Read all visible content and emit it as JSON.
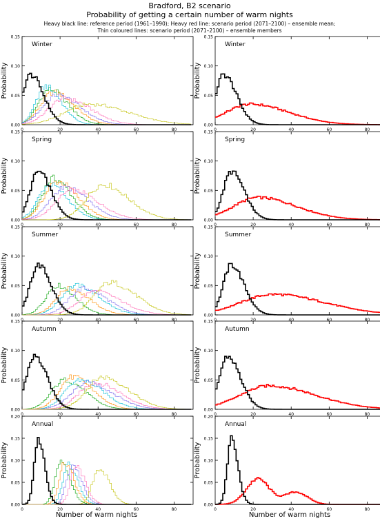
{
  "header": {
    "title": "Bradford, B2 scenario",
    "subtitle": "Probability of getting a certain number of warm nights",
    "legend_line1": "Heavy black line: reference period (1961–1990); Heavy red line: scenario period (2071–2100) – ensemble mean;",
    "legend_line2": "Thin coloured lines: scenario period (2071–2100) – ensemble members"
  },
  "axes": {
    "xlabel": "Number of warm nights",
    "ylabel": "Probability"
  },
  "colors": {
    "reference": "#000000",
    "ensemble_mean": "#ff0000",
    "members": [
      "#00a000",
      "#ff8c00",
      "#00bcd4",
      "#7b68ee",
      "#ff69b4",
      "#c0c000"
    ]
  },
  "chart_data": [
    {
      "type": "line",
      "panel": "Winter",
      "column": "left",
      "label": "Winter",
      "xlim": [
        0,
        90
      ],
      "ylim": [
        0,
        0.15
      ],
      "xticks": [
        0,
        20,
        40,
        60,
        80
      ],
      "yticks": [
        "0.00",
        "0.05",
        "0.10",
        "0.15"
      ],
      "series": [
        {
          "role": "reference",
          "peak": 4,
          "peak_value": 0.085,
          "spread": 5
        },
        {
          "role": "member",
          "peak": 14,
          "peak_value": 0.06,
          "spread": 7
        },
        {
          "role": "member",
          "peak": 16,
          "peak_value": 0.055,
          "spread": 8
        },
        {
          "role": "member",
          "peak": 12,
          "peak_value": 0.065,
          "spread": 6
        },
        {
          "role": "member",
          "peak": 18,
          "peak_value": 0.05,
          "spread": 9
        },
        {
          "role": "member",
          "peak": 22,
          "peak_value": 0.045,
          "spread": 10
        },
        {
          "role": "member",
          "peak": 35,
          "peak_value": 0.035,
          "spread": 15
        }
      ]
    },
    {
      "type": "line",
      "panel": "Winter",
      "column": "right",
      "label": "Winter",
      "xlim": [
        0,
        90
      ],
      "ylim": [
        0,
        0.15
      ],
      "xticks": [
        0,
        20,
        40,
        60,
        80
      ],
      "yticks": [
        "0.00",
        "0.05",
        "0.10",
        "0.15"
      ],
      "series": [
        {
          "role": "reference",
          "peak": 4,
          "peak_value": 0.085,
          "spread": 5
        },
        {
          "role": "ensemble_mean",
          "peak": 18,
          "peak_value": 0.035,
          "spread": 15
        }
      ]
    },
    {
      "type": "line",
      "panel": "Spring",
      "column": "left",
      "label": "Spring",
      "xlim": [
        0,
        90
      ],
      "ylim": [
        0,
        0.15
      ],
      "xticks": [
        0,
        20,
        40,
        60,
        80
      ],
      "yticks": [
        "0.00",
        "0.05",
        "0.10",
        "0.15"
      ],
      "series": [
        {
          "role": "reference",
          "peak": 8,
          "peak_value": 0.082,
          "spread": 5
        },
        {
          "role": "member",
          "peak": 16,
          "peak_value": 0.07,
          "spread": 7
        },
        {
          "role": "member",
          "peak": 18,
          "peak_value": 0.065,
          "spread": 8
        },
        {
          "role": "member",
          "peak": 14,
          "peak_value": 0.06,
          "spread": 7
        },
        {
          "role": "member",
          "peak": 22,
          "peak_value": 0.055,
          "spread": 9
        },
        {
          "role": "member",
          "peak": 26,
          "peak_value": 0.05,
          "spread": 10
        },
        {
          "role": "member",
          "peak": 42,
          "peak_value": 0.06,
          "spread": 10
        }
      ]
    },
    {
      "type": "line",
      "panel": "Spring",
      "column": "right",
      "label": "Spring",
      "xlim": [
        0,
        90
      ],
      "ylim": [
        0,
        0.15
      ],
      "xticks": [
        0,
        20,
        40,
        60,
        80
      ],
      "yticks": [
        "0.00",
        "0.05",
        "0.10",
        "0.15"
      ],
      "series": [
        {
          "role": "reference",
          "peak": 8,
          "peak_value": 0.082,
          "spread": 5
        },
        {
          "role": "ensemble_mean",
          "peak": 22,
          "peak_value": 0.038,
          "spread": 15
        }
      ]
    },
    {
      "type": "line",
      "panel": "Summer",
      "column": "left",
      "label": "Summer",
      "xlim": [
        0,
        90
      ],
      "ylim": [
        0,
        0.15
      ],
      "xticks": [
        0,
        20,
        40,
        60,
        80
      ],
      "yticks": [
        "0.00",
        "0.05",
        "0.10",
        "0.15"
      ],
      "series": [
        {
          "role": "reference",
          "peak": 8,
          "peak_value": 0.085,
          "spread": 5
        },
        {
          "role": "member",
          "peak": 18,
          "peak_value": 0.05,
          "spread": 7
        },
        {
          "role": "member",
          "peak": 24,
          "peak_value": 0.045,
          "spread": 8
        },
        {
          "role": "member",
          "peak": 28,
          "peak_value": 0.05,
          "spread": 9
        },
        {
          "role": "member",
          "peak": 32,
          "peak_value": 0.045,
          "spread": 9
        },
        {
          "role": "member",
          "peak": 38,
          "peak_value": 0.04,
          "spread": 10
        },
        {
          "role": "member",
          "peak": 46,
          "peak_value": 0.055,
          "spread": 10
        }
      ]
    },
    {
      "type": "line",
      "panel": "Summer",
      "column": "right",
      "label": "Summer",
      "xlim": [
        0,
        90
      ],
      "ylim": [
        0,
        0.15
      ],
      "xticks": [
        0,
        20,
        40,
        60,
        80
      ],
      "yticks": [
        "0.00",
        "0.05",
        "0.10",
        "0.15"
      ],
      "series": [
        {
          "role": "reference",
          "peak": 8,
          "peak_value": 0.085,
          "spread": 5
        },
        {
          "role": "ensemble_mean",
          "peak": 30,
          "peak_value": 0.035,
          "spread": 20
        }
      ]
    },
    {
      "type": "line",
      "panel": "Autumn",
      "column": "left",
      "label": "Autumn",
      "xlim": [
        0,
        90
      ],
      "ylim": [
        0,
        0.15
      ],
      "xticks": [
        0,
        20,
        40,
        60,
        80
      ],
      "yticks": [
        "0.00",
        "0.05",
        "0.10",
        "0.15"
      ],
      "series": [
        {
          "role": "reference",
          "peak": 6,
          "peak_value": 0.09,
          "spread": 5
        },
        {
          "role": "member",
          "peak": 22,
          "peak_value": 0.05,
          "spread": 8
        },
        {
          "role": "member",
          "peak": 26,
          "peak_value": 0.055,
          "spread": 8
        },
        {
          "role": "member",
          "peak": 30,
          "peak_value": 0.05,
          "spread": 9
        },
        {
          "role": "member",
          "peak": 34,
          "peak_value": 0.045,
          "spread": 10
        },
        {
          "role": "member",
          "peak": 38,
          "peak_value": 0.045,
          "spread": 10
        },
        {
          "role": "member",
          "peak": 42,
          "peak_value": 0.055,
          "spread": 10
        }
      ]
    },
    {
      "type": "line",
      "panel": "Autumn",
      "column": "right",
      "label": "Autumn",
      "xlim": [
        0,
        90
      ],
      "ylim": [
        0,
        0.15
      ],
      "xticks": [
        0,
        20,
        40,
        60,
        80
      ],
      "yticks": [
        "0.00",
        "0.05",
        "0.10",
        "0.15"
      ],
      "series": [
        {
          "role": "reference",
          "peak": 6,
          "peak_value": 0.09,
          "spread": 5
        },
        {
          "role": "ensemble_mean",
          "peak": 28,
          "peak_value": 0.04,
          "spread": 18
        }
      ]
    },
    {
      "type": "line",
      "panel": "Annual",
      "column": "left",
      "label": "Annual",
      "xlim": [
        0,
        90
      ],
      "ylim": [
        0,
        0.2
      ],
      "xticks": [
        0,
        20,
        40,
        60,
        80
      ],
      "yticks": [
        "0.00",
        "0.05",
        "0.10",
        "0.15",
        "0.20"
      ],
      "series": [
        {
          "role": "reference",
          "peak": 8,
          "peak_value": 0.148,
          "spread": 2.5
        },
        {
          "role": "member",
          "peak": 20,
          "peak_value": 0.1,
          "spread": 3.5
        },
        {
          "role": "member",
          "peak": 22,
          "peak_value": 0.095,
          "spread": 3.5
        },
        {
          "role": "member",
          "peak": 24,
          "peak_value": 0.09,
          "spread": 3.5
        },
        {
          "role": "member",
          "peak": 26,
          "peak_value": 0.09,
          "spread": 3.5
        },
        {
          "role": "member",
          "peak": 28,
          "peak_value": 0.085,
          "spread": 3.5
        },
        {
          "role": "member",
          "peak": 40,
          "peak_value": 0.082,
          "spread": 4
        }
      ]
    },
    {
      "type": "line",
      "panel": "Annual",
      "column": "right",
      "label": "Annual",
      "xlim": [
        0,
        90
      ],
      "ylim": [
        0,
        0.2
      ],
      "xticks": [
        0,
        20,
        40,
        60,
        80
      ],
      "yticks": [
        "0.00",
        "0.05",
        "0.10",
        "0.15",
        "0.20"
      ],
      "series": [
        {
          "role": "reference",
          "peak": 8,
          "peak_value": 0.148,
          "spread": 2.5
        },
        {
          "role": "ensemble_mean",
          "peak": 22,
          "peak_value": 0.058,
          "spread": 6
        },
        {
          "role": "ensemble_mean_secondary",
          "peak": 42,
          "peak_value": 0.028,
          "spread": 6
        }
      ]
    }
  ]
}
